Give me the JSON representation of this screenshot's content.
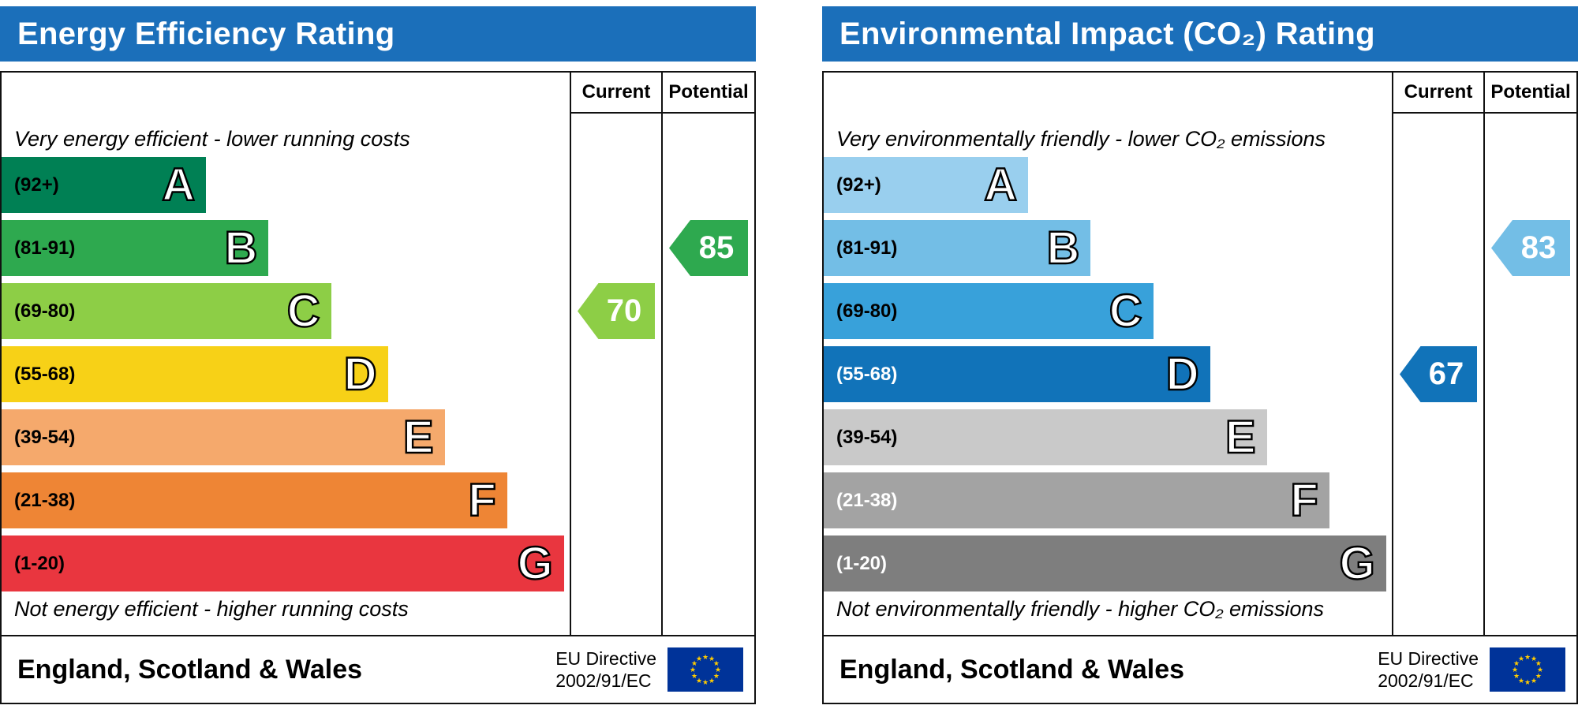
{
  "eu_flag": {
    "background_color": "#003399",
    "star_color": "#ffcc00"
  },
  "chart_data": [
    {
      "type": "bar",
      "id": "energy-efficiency-rating",
      "title": "Energy Efficiency Rating",
      "header_color": "#1b6fba",
      "columns": [
        "Current",
        "Potential"
      ],
      "top_note": "Very energy efficient - lower running costs",
      "bottom_note": "Not energy efficient - higher running costs",
      "bands": [
        {
          "letter": "A",
          "range": "(92+)",
          "color": "#008054",
          "width_pct": 36,
          "range_text_color": "#000000"
        },
        {
          "letter": "B",
          "range": "(81-91)",
          "color": "#2ea94f",
          "width_pct": 47,
          "range_text_color": "#000000"
        },
        {
          "letter": "C",
          "range": "(69-80)",
          "color": "#8dce46",
          "width_pct": 58,
          "range_text_color": "#000000"
        },
        {
          "letter": "D",
          "range": "(55-68)",
          "color": "#f7d117",
          "width_pct": 68,
          "range_text_color": "#000000"
        },
        {
          "letter": "E",
          "range": "(39-54)",
          "color": "#f5a96c",
          "width_pct": 78,
          "range_text_color": "#000000"
        },
        {
          "letter": "F",
          "range": "(21-38)",
          "color": "#ee8535",
          "width_pct": 89,
          "range_text_color": "#000000"
        },
        {
          "letter": "G",
          "range": "(1-20)",
          "color": "#e9363f",
          "width_pct": 99,
          "range_text_color": "#000000"
        }
      ],
      "current": {
        "value": 70,
        "band": "C",
        "band_index": 2,
        "color": "#8dce46"
      },
      "potential": {
        "value": 85,
        "band": "B",
        "band_index": 1,
        "color": "#2ea94f"
      },
      "footer_region": "England, Scotland & Wales",
      "eu_directive": [
        "EU Directive",
        "2002/91/EC"
      ]
    },
    {
      "type": "bar",
      "id": "environmental-impact-co2-rating",
      "title": "Environmental Impact (CO₂) Rating",
      "header_color": "#1b6fba",
      "columns": [
        "Current",
        "Potential"
      ],
      "top_note": "Very environmentally friendly - lower CO₂ emissions",
      "bottom_note": "Not environmentally friendly - higher CO₂ emissions",
      "bands": [
        {
          "letter": "A",
          "range": "(92+)",
          "color": "#99cfee",
          "width_pct": 36,
          "range_text_color": "#000000"
        },
        {
          "letter": "B",
          "range": "(81-91)",
          "color": "#73bee6",
          "width_pct": 47,
          "range_text_color": "#000000"
        },
        {
          "letter": "C",
          "range": "(69-80)",
          "color": "#38a1da",
          "width_pct": 58,
          "range_text_color": "#000000"
        },
        {
          "letter": "D",
          "range": "(55-68)",
          "color": "#1173b9",
          "width_pct": 68,
          "range_text_color": "#ffffff"
        },
        {
          "letter": "E",
          "range": "(39-54)",
          "color": "#c9c9c9",
          "width_pct": 78,
          "range_text_color": "#000000"
        },
        {
          "letter": "F",
          "range": "(21-38)",
          "color": "#a3a3a3",
          "width_pct": 89,
          "range_text_color": "#ffffff"
        },
        {
          "letter": "G",
          "range": "(1-20)",
          "color": "#7e7e7e",
          "width_pct": 99,
          "range_text_color": "#ffffff"
        }
      ],
      "current": {
        "value": 67,
        "band": "D",
        "band_index": 3,
        "color": "#1173b9"
      },
      "potential": {
        "value": 83,
        "band": "B",
        "band_index": 1,
        "color": "#73bee6"
      },
      "footer_region": "England, Scotland & Wales",
      "eu_directive": [
        "EU Directive",
        "2002/91/EC"
      ]
    }
  ]
}
